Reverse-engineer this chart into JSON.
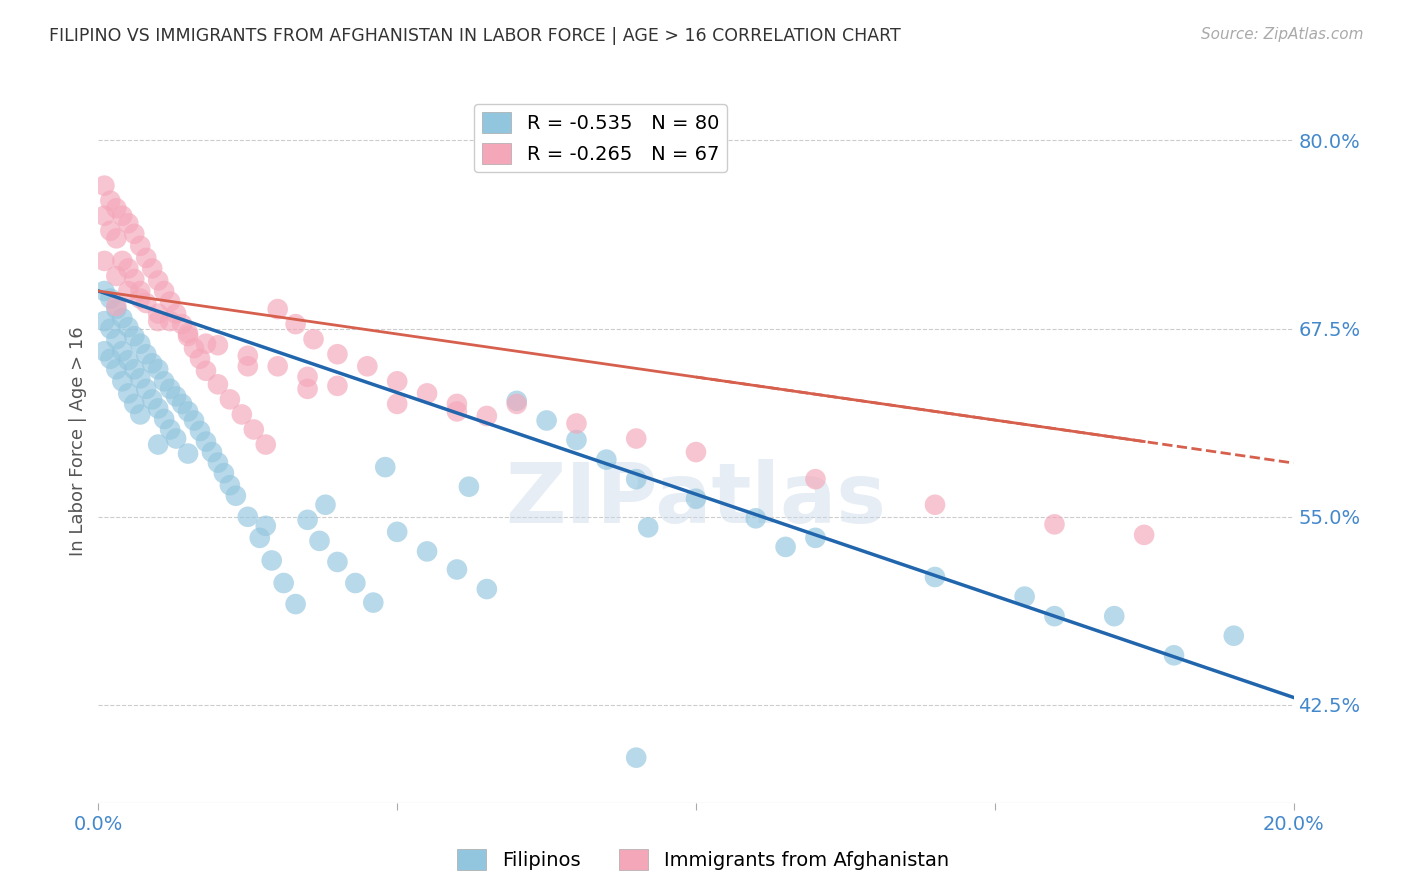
{
  "title": "FILIPINO VS IMMIGRANTS FROM AFGHANISTAN IN LABOR FORCE | AGE > 16 CORRELATION CHART",
  "source": "Source: ZipAtlas.com",
  "ylabel": "In Labor Force | Age > 16",
  "xlim": [
    0.0,
    0.2
  ],
  "ylim": [
    0.36,
    0.84
  ],
  "ytick_labels_right": [
    "80.0%",
    "67.5%",
    "55.0%",
    "42.5%"
  ],
  "ytick_vals_right": [
    0.8,
    0.675,
    0.55,
    0.425
  ],
  "blue_R": -0.535,
  "blue_N": 80,
  "pink_R": -0.265,
  "pink_N": 67,
  "blue_color": "#92C5DE",
  "pink_color": "#F4A7B9",
  "blue_line_color": "#2166AC",
  "pink_line_color": "#D6604D",
  "legend_label_blue": "Filipinos",
  "legend_label_pink": "Immigrants from Afghanistan",
  "watermark": "ZIPatlas",
  "blue_line_x0": 0.0,
  "blue_line_y0": 0.7,
  "blue_line_x1": 0.2,
  "blue_line_y1": 0.43,
  "pink_line_x0": 0.0,
  "pink_line_y0": 0.7,
  "pink_line_x1": 0.175,
  "pink_line_y1": 0.6,
  "blue_scatter_x": [
    0.001,
    0.001,
    0.001,
    0.002,
    0.002,
    0.002,
    0.003,
    0.003,
    0.003,
    0.004,
    0.004,
    0.004,
    0.005,
    0.005,
    0.005,
    0.006,
    0.006,
    0.006,
    0.007,
    0.007,
    0.007,
    0.008,
    0.008,
    0.009,
    0.009,
    0.01,
    0.01,
    0.01,
    0.011,
    0.011,
    0.012,
    0.012,
    0.013,
    0.013,
    0.014,
    0.015,
    0.015,
    0.016,
    0.017,
    0.018,
    0.019,
    0.02,
    0.021,
    0.022,
    0.023,
    0.025,
    0.027,
    0.029,
    0.031,
    0.033,
    0.035,
    0.037,
    0.04,
    0.043,
    0.046,
    0.05,
    0.055,
    0.06,
    0.065,
    0.07,
    0.075,
    0.08,
    0.085,
    0.09,
    0.1,
    0.11,
    0.12,
    0.14,
    0.16,
    0.18,
    0.038,
    0.028,
    0.048,
    0.062,
    0.092,
    0.115,
    0.155,
    0.17,
    0.19,
    0.09
  ],
  "blue_scatter_y": [
    0.7,
    0.68,
    0.66,
    0.695,
    0.675,
    0.655,
    0.688,
    0.668,
    0.648,
    0.682,
    0.66,
    0.64,
    0.676,
    0.654,
    0.632,
    0.67,
    0.648,
    0.625,
    0.665,
    0.642,
    0.618,
    0.658,
    0.635,
    0.652,
    0.628,
    0.648,
    0.622,
    0.598,
    0.64,
    0.615,
    0.635,
    0.608,
    0.63,
    0.602,
    0.625,
    0.62,
    0.592,
    0.614,
    0.607,
    0.6,
    0.593,
    0.586,
    0.579,
    0.571,
    0.564,
    0.55,
    0.536,
    0.521,
    0.506,
    0.492,
    0.548,
    0.534,
    0.52,
    0.506,
    0.493,
    0.54,
    0.527,
    0.515,
    0.502,
    0.627,
    0.614,
    0.601,
    0.588,
    0.575,
    0.562,
    0.549,
    0.536,
    0.51,
    0.484,
    0.458,
    0.558,
    0.544,
    0.583,
    0.57,
    0.543,
    0.53,
    0.497,
    0.484,
    0.471,
    0.39
  ],
  "pink_scatter_x": [
    0.001,
    0.001,
    0.001,
    0.002,
    0.002,
    0.003,
    0.003,
    0.003,
    0.004,
    0.004,
    0.005,
    0.005,
    0.006,
    0.006,
    0.007,
    0.007,
    0.008,
    0.008,
    0.009,
    0.01,
    0.01,
    0.011,
    0.012,
    0.013,
    0.014,
    0.015,
    0.016,
    0.017,
    0.018,
    0.02,
    0.022,
    0.024,
    0.026,
    0.028,
    0.03,
    0.033,
    0.036,
    0.04,
    0.045,
    0.05,
    0.055,
    0.06,
    0.065,
    0.07,
    0.08,
    0.09,
    0.1,
    0.12,
    0.14,
    0.16,
    0.175,
    0.01,
    0.015,
    0.02,
    0.025,
    0.03,
    0.035,
    0.04,
    0.05,
    0.06,
    0.003,
    0.005,
    0.007,
    0.012,
    0.018,
    0.025,
    0.035
  ],
  "pink_scatter_y": [
    0.77,
    0.75,
    0.72,
    0.76,
    0.74,
    0.755,
    0.735,
    0.71,
    0.75,
    0.72,
    0.745,
    0.715,
    0.738,
    0.708,
    0.73,
    0.7,
    0.722,
    0.692,
    0.715,
    0.707,
    0.685,
    0.7,
    0.693,
    0.685,
    0.678,
    0.67,
    0.662,
    0.655,
    0.647,
    0.638,
    0.628,
    0.618,
    0.608,
    0.598,
    0.688,
    0.678,
    0.668,
    0.658,
    0.65,
    0.64,
    0.632,
    0.625,
    0.617,
    0.625,
    0.612,
    0.602,
    0.593,
    0.575,
    0.558,
    0.545,
    0.538,
    0.68,
    0.672,
    0.664,
    0.657,
    0.65,
    0.643,
    0.637,
    0.625,
    0.62,
    0.69,
    0.7,
    0.695,
    0.68,
    0.665,
    0.65,
    0.635
  ],
  "background_color": "#FFFFFF",
  "grid_color": "#CCCCCC",
  "title_color": "#333333",
  "axis_label_color": "#555555",
  "right_tick_color": "#4488CC",
  "bottom_tick_color": "#4488CC"
}
